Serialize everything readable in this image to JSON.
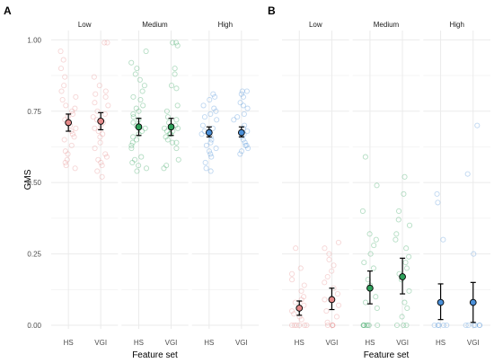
{
  "colors": {
    "Low": "#e58a8a",
    "Medium": "#2ea05a",
    "High": "#4a8fd8",
    "grid": "#ebebeb",
    "text": "#4d4d4d"
  },
  "chart_data": [
    {
      "type": "scatter",
      "panel_label": "A",
      "ylabel": "GMS",
      "xlabel": "Feature set",
      "ylim": [
        0,
        1.02
      ],
      "y_ticks": [
        "0.00",
        "0.25",
        "0.50",
        "0.75",
        "1.00"
      ],
      "y_tick_values": [
        0,
        0.25,
        0.5,
        0.75,
        1.0
      ],
      "facets": [
        "Low",
        "Medium",
        "High"
      ],
      "categories": [
        "HS",
        "VGI"
      ],
      "grid": true,
      "summary": [
        {
          "facet": "Low",
          "category": "HS",
          "mean": 0.71,
          "lower": 0.68,
          "upper": 0.74
        },
        {
          "facet": "Low",
          "category": "VGI",
          "mean": 0.715,
          "lower": 0.685,
          "upper": 0.745
        },
        {
          "facet": "Medium",
          "category": "HS",
          "mean": 0.695,
          "lower": 0.665,
          "upper": 0.725
        },
        {
          "facet": "Medium",
          "category": "VGI",
          "mean": 0.695,
          "lower": 0.665,
          "upper": 0.725
        },
        {
          "facet": "High",
          "category": "HS",
          "mean": 0.675,
          "lower": 0.66,
          "upper": 0.695
        },
        {
          "facet": "High",
          "category": "VGI",
          "mean": 0.675,
          "lower": 0.66,
          "upper": 0.695
        }
      ],
      "points": [
        {
          "facet": "Low",
          "category": "HS",
          "values": [
            0.96,
            0.93,
            0.9,
            0.87,
            0.84,
            0.82,
            0.8,
            0.79,
            0.77,
            0.76,
            0.75,
            0.74,
            0.73,
            0.72,
            0.71,
            0.7,
            0.69,
            0.68,
            0.67,
            0.66,
            0.65,
            0.63,
            0.61,
            0.6,
            0.58,
            0.57,
            0.56,
            0.55
          ]
        },
        {
          "facet": "Low",
          "category": "VGI",
          "values": [
            0.99,
            0.99,
            0.87,
            0.84,
            0.82,
            0.81,
            0.8,
            0.78,
            0.77,
            0.75,
            0.74,
            0.73,
            0.72,
            0.71,
            0.7,
            0.69,
            0.68,
            0.67,
            0.66,
            0.64,
            0.62,
            0.6,
            0.59,
            0.58,
            0.57,
            0.56,
            0.54,
            0.52
          ]
        },
        {
          "facet": "Medium",
          "category": "HS",
          "values": [
            0.96,
            0.92,
            0.9,
            0.88,
            0.86,
            0.84,
            0.82,
            0.8,
            0.79,
            0.77,
            0.76,
            0.75,
            0.74,
            0.73,
            0.72,
            0.71,
            0.7,
            0.69,
            0.68,
            0.67,
            0.66,
            0.65,
            0.64,
            0.63,
            0.62,
            0.59,
            0.58,
            0.57,
            0.56,
            0.55,
            0.54
          ]
        },
        {
          "facet": "Medium",
          "category": "VGI",
          "values": [
            0.99,
            0.99,
            0.98,
            0.9,
            0.88,
            0.84,
            0.83,
            0.77,
            0.75,
            0.73,
            0.72,
            0.71,
            0.7,
            0.69,
            0.69,
            0.68,
            0.68,
            0.67,
            0.67,
            0.66,
            0.65,
            0.64,
            0.64,
            0.62,
            0.58,
            0.56,
            0.55
          ]
        },
        {
          "facet": "High",
          "category": "HS",
          "values": [
            0.81,
            0.8,
            0.79,
            0.77,
            0.76,
            0.75,
            0.74,
            0.73,
            0.72,
            0.7,
            0.69,
            0.68,
            0.68,
            0.67,
            0.66,
            0.65,
            0.64,
            0.63,
            0.62,
            0.61,
            0.6,
            0.59,
            0.57,
            0.55,
            0.54
          ]
        },
        {
          "facet": "High",
          "category": "VGI",
          "values": [
            0.82,
            0.82,
            0.81,
            0.8,
            0.78,
            0.77,
            0.76,
            0.74,
            0.73,
            0.72,
            0.7,
            0.69,
            0.68,
            0.67,
            0.66,
            0.65,
            0.64,
            0.63,
            0.63,
            0.62,
            0.61,
            0.6
          ]
        }
      ]
    },
    {
      "type": "scatter",
      "panel_label": "B",
      "xlabel": "Feature set",
      "ylim": [
        0,
        1.02
      ],
      "facets": [
        "Low",
        "Medium",
        "High"
      ],
      "categories": [
        "HS",
        "VGI"
      ],
      "grid": true,
      "summary": [
        {
          "facet": "Low",
          "category": "HS",
          "mean": 0.06,
          "lower": 0.035,
          "upper": 0.085
        },
        {
          "facet": "Low",
          "category": "VGI",
          "mean": 0.09,
          "lower": 0.055,
          "upper": 0.13
        },
        {
          "facet": "Medium",
          "category": "HS",
          "mean": 0.13,
          "lower": 0.075,
          "upper": 0.19
        },
        {
          "facet": "Medium",
          "category": "VGI",
          "mean": 0.17,
          "lower": 0.11,
          "upper": 0.235
        },
        {
          "facet": "High",
          "category": "HS",
          "mean": 0.08,
          "lower": 0.02,
          "upper": 0.145
        },
        {
          "facet": "High",
          "category": "VGI",
          "mean": 0.08,
          "lower": 0.01,
          "upper": 0.15
        }
      ],
      "points": [
        {
          "facet": "Low",
          "category": "HS",
          "values": [
            0.27,
            0.2,
            0.18,
            0.16,
            0.14,
            0.12,
            0.1,
            0.09,
            0.08,
            0.07,
            0.05,
            0.04,
            0.03,
            0.02,
            0.0,
            0.0,
            0.0,
            0.0,
            0.0,
            0.0
          ]
        },
        {
          "facet": "Low",
          "category": "VGI",
          "values": [
            0.29,
            0.27,
            0.25,
            0.23,
            0.21,
            0.19,
            0.17,
            0.15,
            0.13,
            0.11,
            0.09,
            0.07,
            0.05,
            0.03,
            0.01,
            0.0,
            0.0,
            0.0,
            0.0
          ]
        },
        {
          "facet": "Medium",
          "category": "HS",
          "values": [
            0.59,
            0.49,
            0.4,
            0.32,
            0.3,
            0.28,
            0.25,
            0.22,
            0.2,
            0.16,
            0.14,
            0.1,
            0.08,
            0.06,
            0.0,
            0.0,
            0.0,
            0.0,
            0.0,
            0.0,
            0.0
          ]
        },
        {
          "facet": "Medium",
          "category": "VGI",
          "values": [
            0.52,
            0.46,
            0.4,
            0.37,
            0.35,
            0.32,
            0.3,
            0.27,
            0.24,
            0.22,
            0.2,
            0.18,
            0.16,
            0.12,
            0.08,
            0.06,
            0.03,
            0.0,
            0.0,
            0.0
          ]
        },
        {
          "facet": "High",
          "category": "HS",
          "values": [
            0.46,
            0.43,
            0.3,
            0.0,
            0.0,
            0.0,
            0.0,
            0.0
          ]
        },
        {
          "facet": "High",
          "category": "VGI",
          "values": [
            0.7,
            0.53,
            0.25,
            0.0,
            0.0,
            0.0,
            0.0,
            0.0,
            0.0
          ]
        }
      ]
    }
  ]
}
